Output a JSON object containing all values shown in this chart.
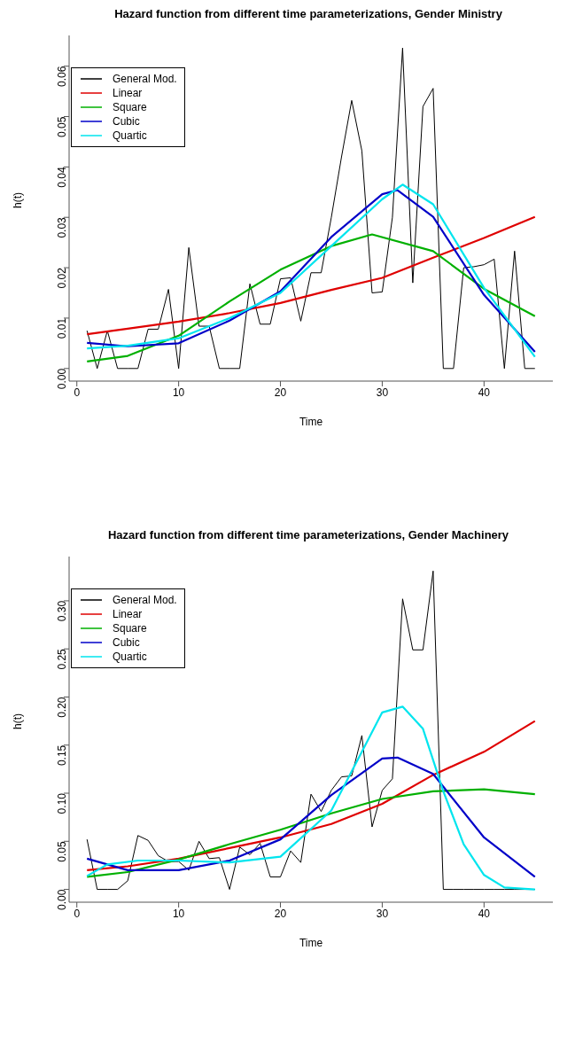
{
  "chart_data": [
    {
      "type": "line",
      "title": "Hazard function from different time parameterizations, Gender Ministry",
      "xlabel": "Time",
      "ylabel": "h(t)",
      "legend": "top left",
      "grid": false,
      "marker": "none",
      "line_style": "solid",
      "xlim": [
        -0.76,
        46.76
      ],
      "xticks": [
        0,
        10,
        20,
        30,
        40
      ],
      "ylim": [
        -0.0025,
        0.0661
      ],
      "yticks": [
        {
          "value": 0,
          "label": "0.00"
        },
        {
          "value": 0.01,
          "label": "0.01"
        },
        {
          "value": 0.02,
          "label": "0.02"
        },
        {
          "value": 0.03,
          "label": "0.03"
        },
        {
          "value": 0.04,
          "label": "0.04"
        },
        {
          "value": 0.05,
          "label": "0.05"
        },
        {
          "value": 0.06,
          "label": "0.06"
        }
      ],
      "series": [
        {
          "name": "General Mod.",
          "color": "#000000",
          "x": [
            1,
            2,
            3,
            4,
            5,
            6,
            7,
            8,
            9,
            10,
            11,
            12,
            13,
            14,
            15,
            16,
            17,
            18,
            19,
            20,
            21,
            22,
            23,
            24,
            25,
            26,
            27,
            28,
            29,
            30,
            31,
            32,
            33,
            34,
            35,
            36,
            37,
            38,
            39,
            40,
            41,
            42,
            43,
            44,
            45
          ],
          "values": [
            0.0075,
            0,
            0.0075,
            0,
            0,
            0,
            0.0078,
            0.0078,
            0.0157,
            0,
            0.024,
            0.0084,
            0.0084,
            0,
            0,
            0,
            0.0168,
            0.0088,
            0.0088,
            0.0178,
            0.018,
            0.0094,
            0.019,
            0.019,
            0.03,
            0.042,
            0.0532,
            0.0432,
            0.015,
            0.0152,
            0.03,
            0.0636,
            0.017,
            0.052,
            0.0556,
            0,
            0,
            0.02,
            0.0202,
            0.0206,
            0.0217,
            0,
            0.0233,
            0,
            0
          ]
        },
        {
          "name": "Linear",
          "color": "#df0000",
          "x": [
            1,
            5,
            10,
            15,
            20,
            25,
            30,
            35,
            40,
            45
          ],
          "values": [
            0.0068,
            0.0079,
            0.0093,
            0.011,
            0.013,
            0.0156,
            0.018,
            0.022,
            0.0259,
            0.0301
          ]
        },
        {
          "name": "Square",
          "color": "#00b000",
          "x": [
            1,
            5,
            10,
            15,
            20,
            25,
            29,
            35,
            40,
            45
          ],
          "values": [
            0.0014,
            0.0025,
            0.0065,
            0.0133,
            0.0196,
            0.0243,
            0.0266,
            0.0233,
            0.0158,
            0.0104
          ]
        },
        {
          "name": "Cubic",
          "color": "#0000c8",
          "x": [
            1,
            5,
            10,
            15,
            20,
            25,
            30,
            31.5,
            35,
            40,
            45
          ],
          "values": [
            0.0051,
            0.0044,
            0.005,
            0.0095,
            0.0153,
            0.0261,
            0.0346,
            0.0354,
            0.0301,
            0.0146,
            0.0033
          ]
        },
        {
          "name": "Quartic",
          "color": "#00e5ee",
          "x": [
            1,
            5,
            10,
            15,
            20,
            25,
            30,
            32,
            35,
            40,
            45
          ],
          "values": [
            0.004,
            0.0045,
            0.006,
            0.01,
            0.015,
            0.0243,
            0.0336,
            0.0365,
            0.0326,
            0.016,
            0.0023
          ]
        }
      ]
    },
    {
      "type": "line",
      "title": "Hazard function from different time parameterizations, Gender Machinery",
      "xlabel": "Time",
      "ylabel": "h(t)",
      "legend": "top left",
      "grid": false,
      "marker": "none",
      "line_style": "solid",
      "xlim": [
        -0.76,
        46.76
      ],
      "xticks": [
        0,
        10,
        20,
        30,
        40
      ],
      "ylim": [
        -0.0133,
        0.346
      ],
      "yticks": [
        {
          "value": 0,
          "label": "0.00"
        },
        {
          "value": 0.05,
          "label": "0.05"
        },
        {
          "value": 0.1,
          "label": "0.10"
        },
        {
          "value": 0.15,
          "label": "0.15"
        },
        {
          "value": 0.2,
          "label": "0.20"
        },
        {
          "value": 0.25,
          "label": "0.25"
        },
        {
          "value": 0.3,
          "label": "0.30"
        }
      ],
      "series": [
        {
          "name": "General Mod.",
          "color": "#000000",
          "x": [
            1,
            2,
            3,
            4,
            5,
            6,
            7,
            8,
            9,
            10,
            11,
            12,
            13,
            14,
            15,
            16,
            17,
            18,
            19,
            20,
            21,
            22,
            23,
            24,
            25,
            26,
            27,
            28,
            29,
            30,
            31,
            32,
            33,
            34,
            35,
            36,
            37,
            38,
            39,
            40,
            41,
            42,
            43,
            44,
            45
          ],
          "values": [
            0.052,
            0,
            0,
            0,
            0.009,
            0.056,
            0.051,
            0.035,
            0.029,
            0.029,
            0.02,
            0.05,
            0.032,
            0.033,
            0,
            0.044,
            0.036,
            0.048,
            0.013,
            0.013,
            0.04,
            0.028,
            0.099,
            0.081,
            0.103,
            0.117,
            0.118,
            0.16,
            0.065,
            0.103,
            0.115,
            0.302,
            0.249,
            0.249,
            0.331,
            0,
            0,
            0,
            0,
            0,
            0,
            0,
            0,
            0,
            0
          ]
        },
        {
          "name": "Linear",
          "color": "#df0000",
          "x": [
            1,
            5,
            10,
            15,
            20,
            25,
            30,
            35,
            40,
            45
          ],
          "values": [
            0.02,
            0.024,
            0.032,
            0.043,
            0.054,
            0.068,
            0.089,
            0.119,
            0.143,
            0.175
          ]
        },
        {
          "name": "Square",
          "color": "#00b000",
          "x": [
            1,
            5,
            10,
            15,
            20,
            25,
            30,
            35,
            40,
            45
          ],
          "values": [
            0.013,
            0.018,
            0.031,
            0.047,
            0.062,
            0.079,
            0.094,
            0.102,
            0.104,
            0.099
          ]
        },
        {
          "name": "Cubic",
          "color": "#0000c8",
          "x": [
            1,
            5,
            10,
            15,
            20,
            25,
            30,
            31.5,
            35,
            40,
            45
          ],
          "values": [
            0.032,
            0.02,
            0.02,
            0.03,
            0.052,
            0.098,
            0.136,
            0.137,
            0.12,
            0.054,
            0.013
          ]
        },
        {
          "name": "Quartic",
          "color": "#00e5ee",
          "x": [
            1,
            3,
            6,
            10,
            15,
            20,
            25,
            28,
            30,
            32,
            34,
            36,
            38,
            40,
            42,
            45
          ],
          "values": [
            0.014,
            0.026,
            0.03,
            0.03,
            0.028,
            0.034,
            0.082,
            0.143,
            0.184,
            0.19,
            0.167,
            0.102,
            0.047,
            0.015,
            0.002,
            0
          ]
        }
      ]
    }
  ]
}
